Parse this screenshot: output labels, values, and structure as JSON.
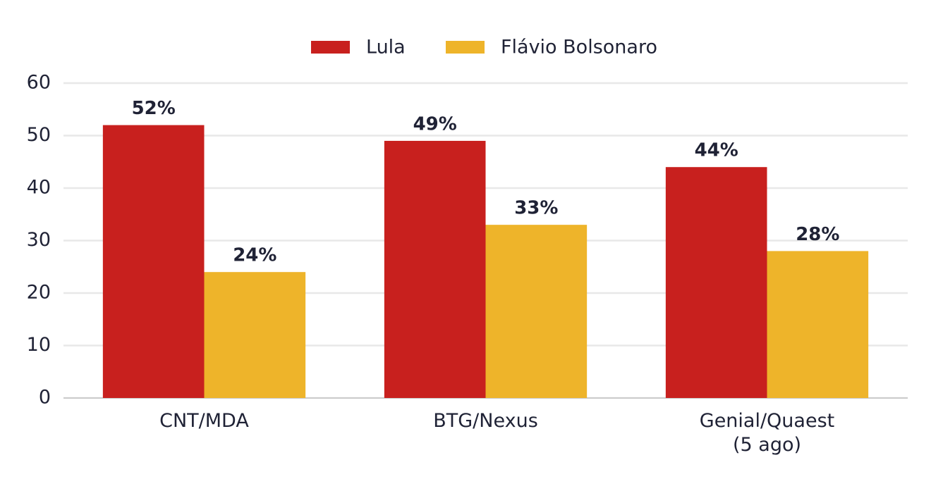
{
  "chart_data": {
    "type": "bar",
    "categories": [
      "CNT/MDA",
      "BTG/Nexus",
      "Genial/Quaest\n(5 ago)"
    ],
    "series": [
      {
        "name": "Lula",
        "color": "#c8201e",
        "values": [
          52,
          49,
          44
        ],
        "value_labels": [
          "52%",
          "49%",
          "44%"
        ]
      },
      {
        "name": "Flávio Bolsonaro",
        "color": "#eeb42a",
        "values": [
          24,
          33,
          28
        ],
        "value_labels": [
          "24%",
          "33%",
          "28%"
        ]
      }
    ],
    "ylim": [
      0,
      60
    ],
    "yticks": [
      0,
      10,
      20,
      30,
      40,
      50,
      60
    ],
    "grid": true,
    "legend": "top"
  }
}
